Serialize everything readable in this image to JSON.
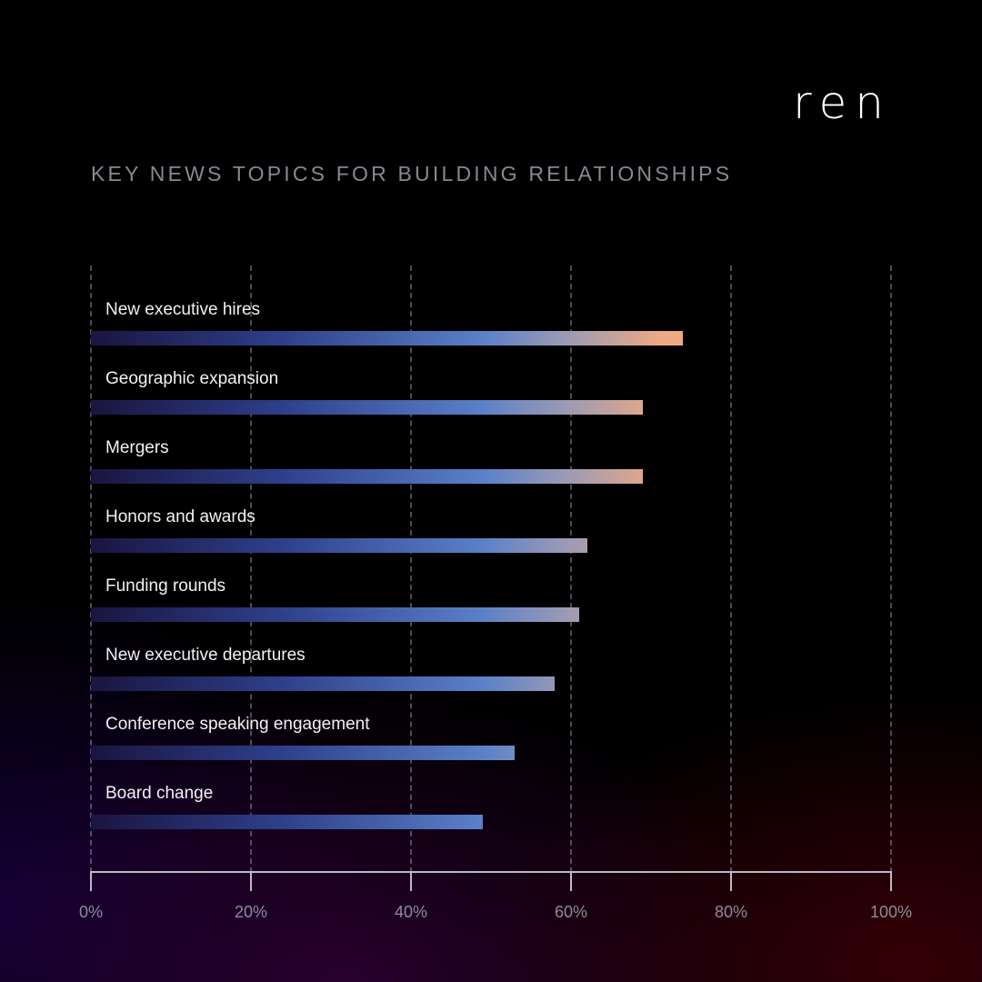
{
  "brand": {
    "logo_text": "ren"
  },
  "chart_data": {
    "type": "bar",
    "orientation": "horizontal",
    "title": "KEY NEWS TOPICS FOR BUILDING RELATIONSHIPS",
    "xlabel": "",
    "ylabel": "",
    "xlim": [
      0,
      100
    ],
    "grid": true,
    "legend": null,
    "categories": [
      "New executive hires",
      "Geographic expansion",
      "Mergers",
      "Honors and awards",
      "Funding rounds",
      "New executive departures",
      "Conference speaking engagement",
      "Board change"
    ],
    "values": [
      74,
      69,
      69,
      62,
      61,
      58,
      53,
      49
    ],
    "ticks": [
      "0%",
      "20%",
      "40%",
      "60%",
      "80%",
      "100%"
    ],
    "colors": {
      "gradient_start": "#1a1540",
      "gradient_mid1": "#2e3f8a",
      "gradient_mid2": "#5a80c8",
      "gradient_end": "#eca984",
      "grid": "#8c87a0",
      "axis": "#bdb8c8"
    }
  }
}
